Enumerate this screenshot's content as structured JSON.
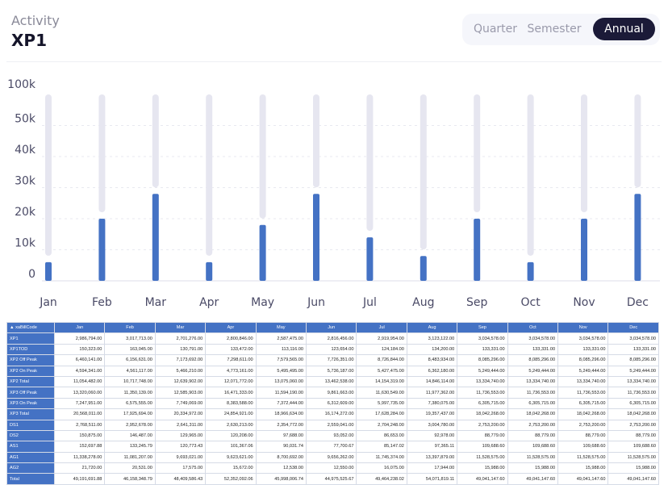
{
  "header": {
    "subtitle": "Activity",
    "title": "XP1"
  },
  "period_toggle": {
    "options": [
      "Quarter",
      "Semester",
      "Annual"
    ],
    "selected": "Annual"
  },
  "colors": {
    "bar": "#4472c4",
    "track": "#e6e6f0",
    "active_toggle": "#1b1a38",
    "table_header": "#4472c4"
  },
  "chart_data": {
    "type": "bar",
    "categories": [
      "Jan",
      "Feb",
      "Mar",
      "Apr",
      "May",
      "Jun",
      "Jul",
      "Aug",
      "Sep",
      "Oct",
      "Nov",
      "Dec"
    ],
    "values": [
      6000,
      20000,
      28000,
      6000,
      18000,
      28000,
      14000,
      8000,
      20000,
      6000,
      20000,
      28000
    ],
    "y_ticks": [
      "0",
      "10k",
      "20k",
      "30k",
      "40k",
      "50k",
      "100k"
    ],
    "y_tick_values": [
      0,
      10000,
      20000,
      30000,
      40000,
      50000,
      100000
    ],
    "ylim": [
      0,
      100000
    ],
    "grid": "dashed horizontal",
    "title": "",
    "xlabel": "",
    "ylabel": ""
  },
  "table": {
    "corner": "xaBillCode",
    "columns": [
      "Jan",
      "Feb",
      "Mar",
      "Apr",
      "May",
      "Jun",
      "Jul",
      "Aug",
      "Sep",
      "Oct",
      "Nov",
      "Dec"
    ],
    "rows": [
      {
        "code": "XP1",
        "values": [
          "2,986,794.00",
          "3,017,713.00",
          "2,701,276.00",
          "2,800,846.00",
          "2,587,475.00",
          "2,816,456.00",
          "2,919,954.00",
          "3,123,122.00",
          "3,034,578.00",
          "3,034,578.00",
          "3,034,578.00",
          "3,034,578.00"
        ]
      },
      {
        "code": "XP1TOD",
        "values": [
          "150,323.00",
          "163,045.00",
          "130,791.00",
          "133,472.00",
          "113,116.00",
          "123,654.00",
          "124,184.00",
          "134,200.00",
          "133,331.00",
          "133,331.00",
          "133,331.00",
          "133,331.00"
        ]
      },
      {
        "code": "XP2 Off Peak",
        "values": [
          "6,460,141.00",
          "6,156,631.00",
          "7,173,692.00",
          "7,298,611.00",
          "7,579,565.00",
          "7,726,351.00",
          "8,726,844.00",
          "8,483,934.00",
          "8,085,296.00",
          "8,085,296.00",
          "8,085,296.00",
          "8,085,296.00"
        ]
      },
      {
        "code": "XP2 On Peak",
        "values": [
          "4,594,341.00",
          "4,561,117.00",
          "5,466,210.00",
          "4,773,161.00",
          "5,495,495.00",
          "5,736,187.00",
          "5,427,475.00",
          "6,362,180.00",
          "5,249,444.00",
          "5,249,444.00",
          "5,249,444.00",
          "5,249,444.00"
        ]
      },
      {
        "code": "XP2 Total",
        "values": [
          "11,054,482.00",
          "10,717,748.00",
          "12,639,902.00",
          "12,071,772.00",
          "13,075,060.00",
          "13,462,538.00",
          "14,154,319.00",
          "14,846,114.00",
          "13,334,740.00",
          "13,334,740.00",
          "13,334,740.00",
          "13,334,740.00"
        ]
      },
      {
        "code": "XP3 Off Peak",
        "values": [
          "13,320,060.00",
          "11,350,139.00",
          "12,585,903.00",
          "16,471,333.00",
          "11,594,190.00",
          "9,861,663.00",
          "11,630,549.00",
          "11,977,362.00",
          "11,736,553.00",
          "11,736,553.00",
          "11,736,553.00",
          "11,736,553.00"
        ]
      },
      {
        "code": "XP3 On Peak",
        "values": [
          "7,247,951.00",
          "6,575,555.00",
          "7,749,069.00",
          "8,383,588.00",
          "7,372,444.00",
          "6,312,609.00",
          "5,997,735.00",
          "7,380,075.00",
          "6,305,715.00",
          "6,305,715.00",
          "6,305,715.00",
          "6,305,715.00"
        ]
      },
      {
        "code": "XP3 Total",
        "values": [
          "20,568,011.00",
          "17,925,694.00",
          "20,334,972.00",
          "24,854,921.00",
          "18,966,634.00",
          "16,174,272.00",
          "17,628,284.00",
          "19,357,437.00",
          "18,042,268.00",
          "18,042,268.00",
          "18,042,268.00",
          "18,042,268.00"
        ]
      },
      {
        "code": "DS1",
        "values": [
          "2,768,511.00",
          "2,952,678.00",
          "2,641,311.00",
          "2,630,213.00",
          "2,354,772.00",
          "2,559,041.00",
          "2,704,248.00",
          "3,004,780.00",
          "2,753,200.00",
          "2,753,200.00",
          "2,753,200.00",
          "2,753,200.00"
        ]
      },
      {
        "code": "DS2",
        "values": [
          "150,875.00",
          "146,487.00",
          "129,965.00",
          "120,208.00",
          "97,688.00",
          "93,052.00",
          "86,653.00",
          "92,978.00",
          "88,779.00",
          "88,779.00",
          "88,779.00",
          "88,779.00"
        ]
      },
      {
        "code": "AS1",
        "values": [
          "152,697.88",
          "133,245.79",
          "120,773.43",
          "101,367.06",
          "90,031.74",
          "77,700.67",
          "85,147.02",
          "97,365.11",
          "109,688.60",
          "109,688.60",
          "109,688.60",
          "109,688.60"
        ]
      },
      {
        "code": "AG1",
        "values": [
          "11,338,278.00",
          "11,081,207.00",
          "9,693,021.00",
          "9,623,621.00",
          "8,700,692.00",
          "9,656,262.00",
          "11,745,374.00",
          "13,397,879.00",
          "11,528,575.00",
          "11,528,575.00",
          "11,528,575.00",
          "11,528,575.00"
        ]
      },
      {
        "code": "AG2",
        "values": [
          "21,720.00",
          "20,531.00",
          "17,575.00",
          "15,672.00",
          "12,538.00",
          "12,550.00",
          "16,075.00",
          "17,944.00",
          "15,988.00",
          "15,988.00",
          "15,988.00",
          "15,988.00"
        ]
      },
      {
        "code": "Total",
        "values": [
          "49,191,691.88",
          "46,158,348.79",
          "48,409,586.43",
          "52,352,092.06",
          "45,998,006.74",
          "44,975,525.67",
          "49,464,238.02",
          "54,071,819.11",
          "49,041,147.60",
          "49,041,147.60",
          "49,041,147.60",
          "49,041,147.60"
        ]
      }
    ]
  }
}
